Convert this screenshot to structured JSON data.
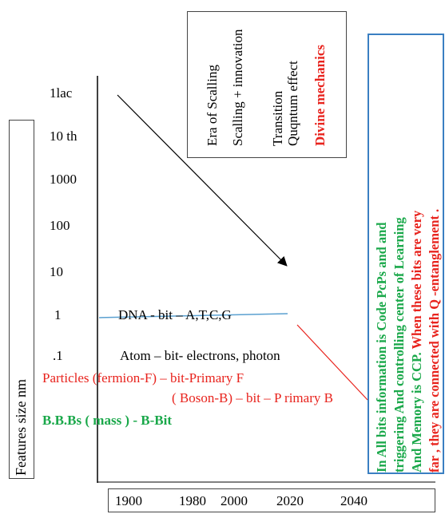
{
  "era_box": {
    "items": [
      {
        "text": "Era of Scalling",
        "color": "#000000"
      },
      {
        "text": "Scalling + innovation",
        "color": "#000000"
      },
      {
        "text": "Transition",
        "color": "#000000"
      },
      {
        "text": "Quqntum effect",
        "color": "#000000"
      },
      {
        "text": "Divine mechanics",
        "color": "#e8231d"
      }
    ]
  },
  "y_axis": {
    "label": "Features  size   nm",
    "ticks": [
      "1lac",
      "10 th",
      "1000",
      "100",
      "10",
      "1",
      ".1"
    ]
  },
  "rows": {
    "dna": "DNA  - bit – A,T,C,G",
    "atom": "Atom – bit- electrons, photon",
    "particles": "Particles (fermion-F) – bit-Primary F",
    "boson": "( Boson-B) – bit – P rimary B",
    "bbbs": "B.B.Bs  ( mass )  - B-Bit"
  },
  "x_axis": {
    "years": [
      "1900",
      "1980",
      "2000",
      "2020",
      "2040"
    ]
  },
  "info_box": {
    "line1": "In All bits information is Code  PcPs and and",
    "line2": "triggering And controlling center of Learning",
    "line3_green": "And Memory  is CCP. ",
    "line3_red": "When these bits are very",
    "line4": "far , they are connected with Q -entanglement ."
  },
  "colors": {
    "red": "#e8231d",
    "green": "#1aa84a",
    "blue_box": "#3a7fc2",
    "blue_line": "#5aa0d0"
  }
}
